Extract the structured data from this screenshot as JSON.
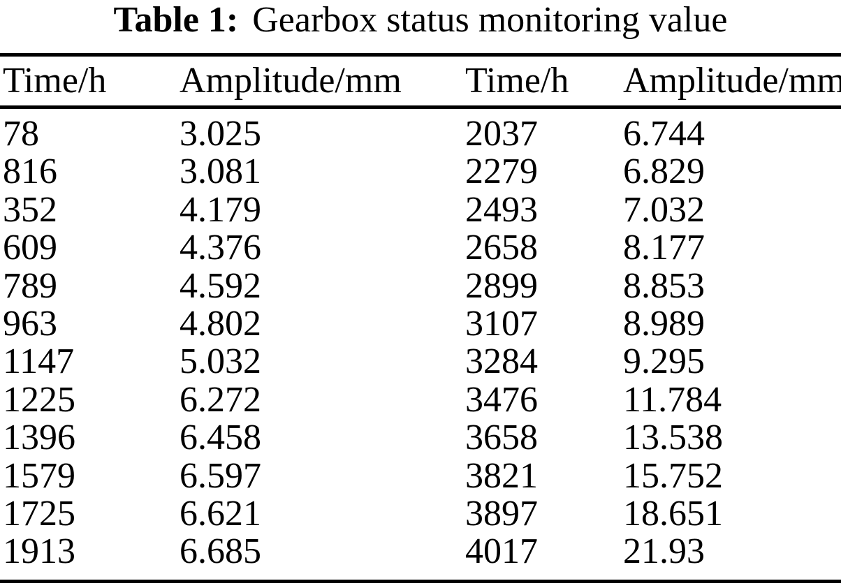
{
  "page": {
    "background": "#ffffff",
    "text_color": "#000000"
  },
  "title": {
    "label": "Table 1:",
    "text": "Gearbox status monitoring value"
  },
  "table": {
    "headers": [
      "Time/h",
      "Amplitude/mm",
      "Time/h",
      "Amplitude/mm"
    ],
    "rows": [
      {
        "time1": "78",
        "amp1": "3.025",
        "time2": "2037",
        "amp2": "6.744"
      },
      {
        "time1": "816",
        "amp1": "3.081",
        "time2": "2279",
        "amp2": "6.829"
      },
      {
        "time1": "352",
        "amp1": "4.179",
        "time2": "2493",
        "amp2": "7.032"
      },
      {
        "time1": "609",
        "amp1": "4.376",
        "time2": "2658",
        "amp2": "8.177"
      },
      {
        "time1": "789",
        "amp1": "4.592",
        "time2": "2899",
        "amp2": "8.853"
      },
      {
        "time1": "963",
        "amp1": "4.802",
        "time2": "3107",
        "amp2": "8.989"
      },
      {
        "time1": "1147",
        "amp1": "5.032",
        "time2": "3284",
        "amp2": "9.295"
      },
      {
        "time1": "1225",
        "amp1": "6.272",
        "time2": "3476",
        "amp2": "11.784"
      },
      {
        "time1": "1396",
        "amp1": "6.458",
        "time2": "3658",
        "amp2": "13.538"
      },
      {
        "time1": "1579",
        "amp1": "6.597",
        "time2": "3821",
        "amp2": "15.752"
      },
      {
        "time1": "1725",
        "amp1": "6.621",
        "time2": "3897",
        "amp2": "18.651"
      },
      {
        "time1": "1913",
        "amp1": "6.685",
        "time2": "4017",
        "amp2": "21.93"
      }
    ]
  },
  "chart_data": {
    "type": "table",
    "title": "Table 1: Gearbox status monitoring value",
    "columns": [
      "Time/h",
      "Amplitude/mm",
      "Time/h",
      "Amplitude/mm"
    ],
    "series": [
      {
        "name": "Amplitude/mm vs Time/h",
        "x": [
          78,
          816,
          352,
          609,
          789,
          963,
          1147,
          1225,
          1396,
          1579,
          1725,
          1913,
          2037,
          2279,
          2493,
          2658,
          2899,
          3107,
          3284,
          3476,
          3658,
          3821,
          3897,
          4017
        ],
        "values": [
          3.025,
          3.081,
          4.179,
          4.376,
          4.592,
          4.802,
          5.032,
          6.272,
          6.458,
          6.597,
          6.621,
          6.685,
          6.744,
          6.829,
          7.032,
          8.177,
          8.853,
          8.989,
          9.295,
          11.784,
          13.538,
          15.752,
          18.651,
          21.93
        ]
      }
    ]
  }
}
